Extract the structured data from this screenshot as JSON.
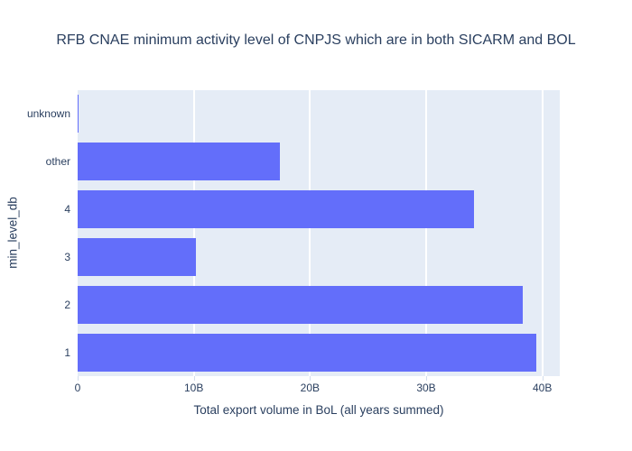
{
  "chart_data": {
    "type": "bar",
    "orientation": "horizontal",
    "title": "RFB CNAE minimum activity level of CNPJS which are in both SICARM and BOL",
    "xlabel": "Total export volume in BoL (all years summed)",
    "ylabel": "min_level_db",
    "categories": [
      "unknown",
      "other",
      "4",
      "3",
      "2",
      "1"
    ],
    "values_billions": [
      0.05,
      17.4,
      34.1,
      10.2,
      38.3,
      39.5
    ],
    "x_tick_labels": [
      "0",
      "10B",
      "20B",
      "30B",
      "40B"
    ],
    "x_tick_values_billions": [
      0,
      10,
      20,
      30,
      40
    ],
    "xlim_billions": [
      0,
      41.5
    ],
    "grid": true,
    "legend": "none",
    "colors": {
      "bar": "#636efa",
      "plot_background": "#e5ecf6",
      "gridline": "#ffffff",
      "text": "#2a3f5f",
      "paper_background": "#ffffff"
    }
  }
}
